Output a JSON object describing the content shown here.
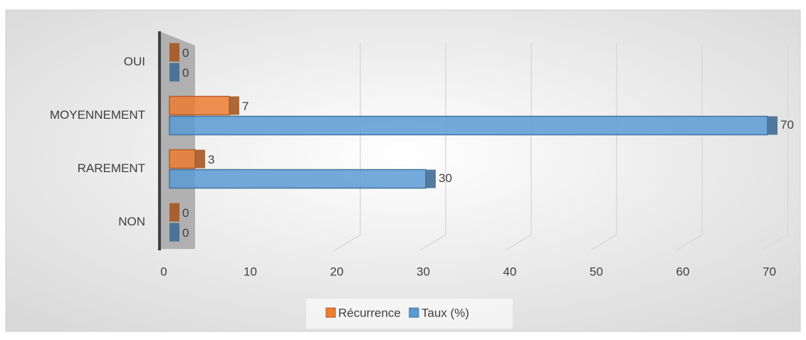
{
  "chart_data": {
    "type": "bar",
    "orientation": "horizontal",
    "categories": [
      "OUI",
      "MOYENNEMENT",
      "RAREMENT",
      "NON"
    ],
    "series": [
      {
        "name": "Récurrence",
        "color": "#ed7d31",
        "values": [
          0,
          7,
          3,
          0
        ]
      },
      {
        "name": "Taux (%)",
        "color": "#5b9bd5",
        "values": [
          0,
          70,
          30,
          0
        ]
      }
    ],
    "xlim": [
      0,
      70
    ],
    "xticks": [
      0,
      10,
      20,
      30,
      40,
      50,
      60,
      70
    ],
    "grid": true,
    "legend": "bottom"
  }
}
